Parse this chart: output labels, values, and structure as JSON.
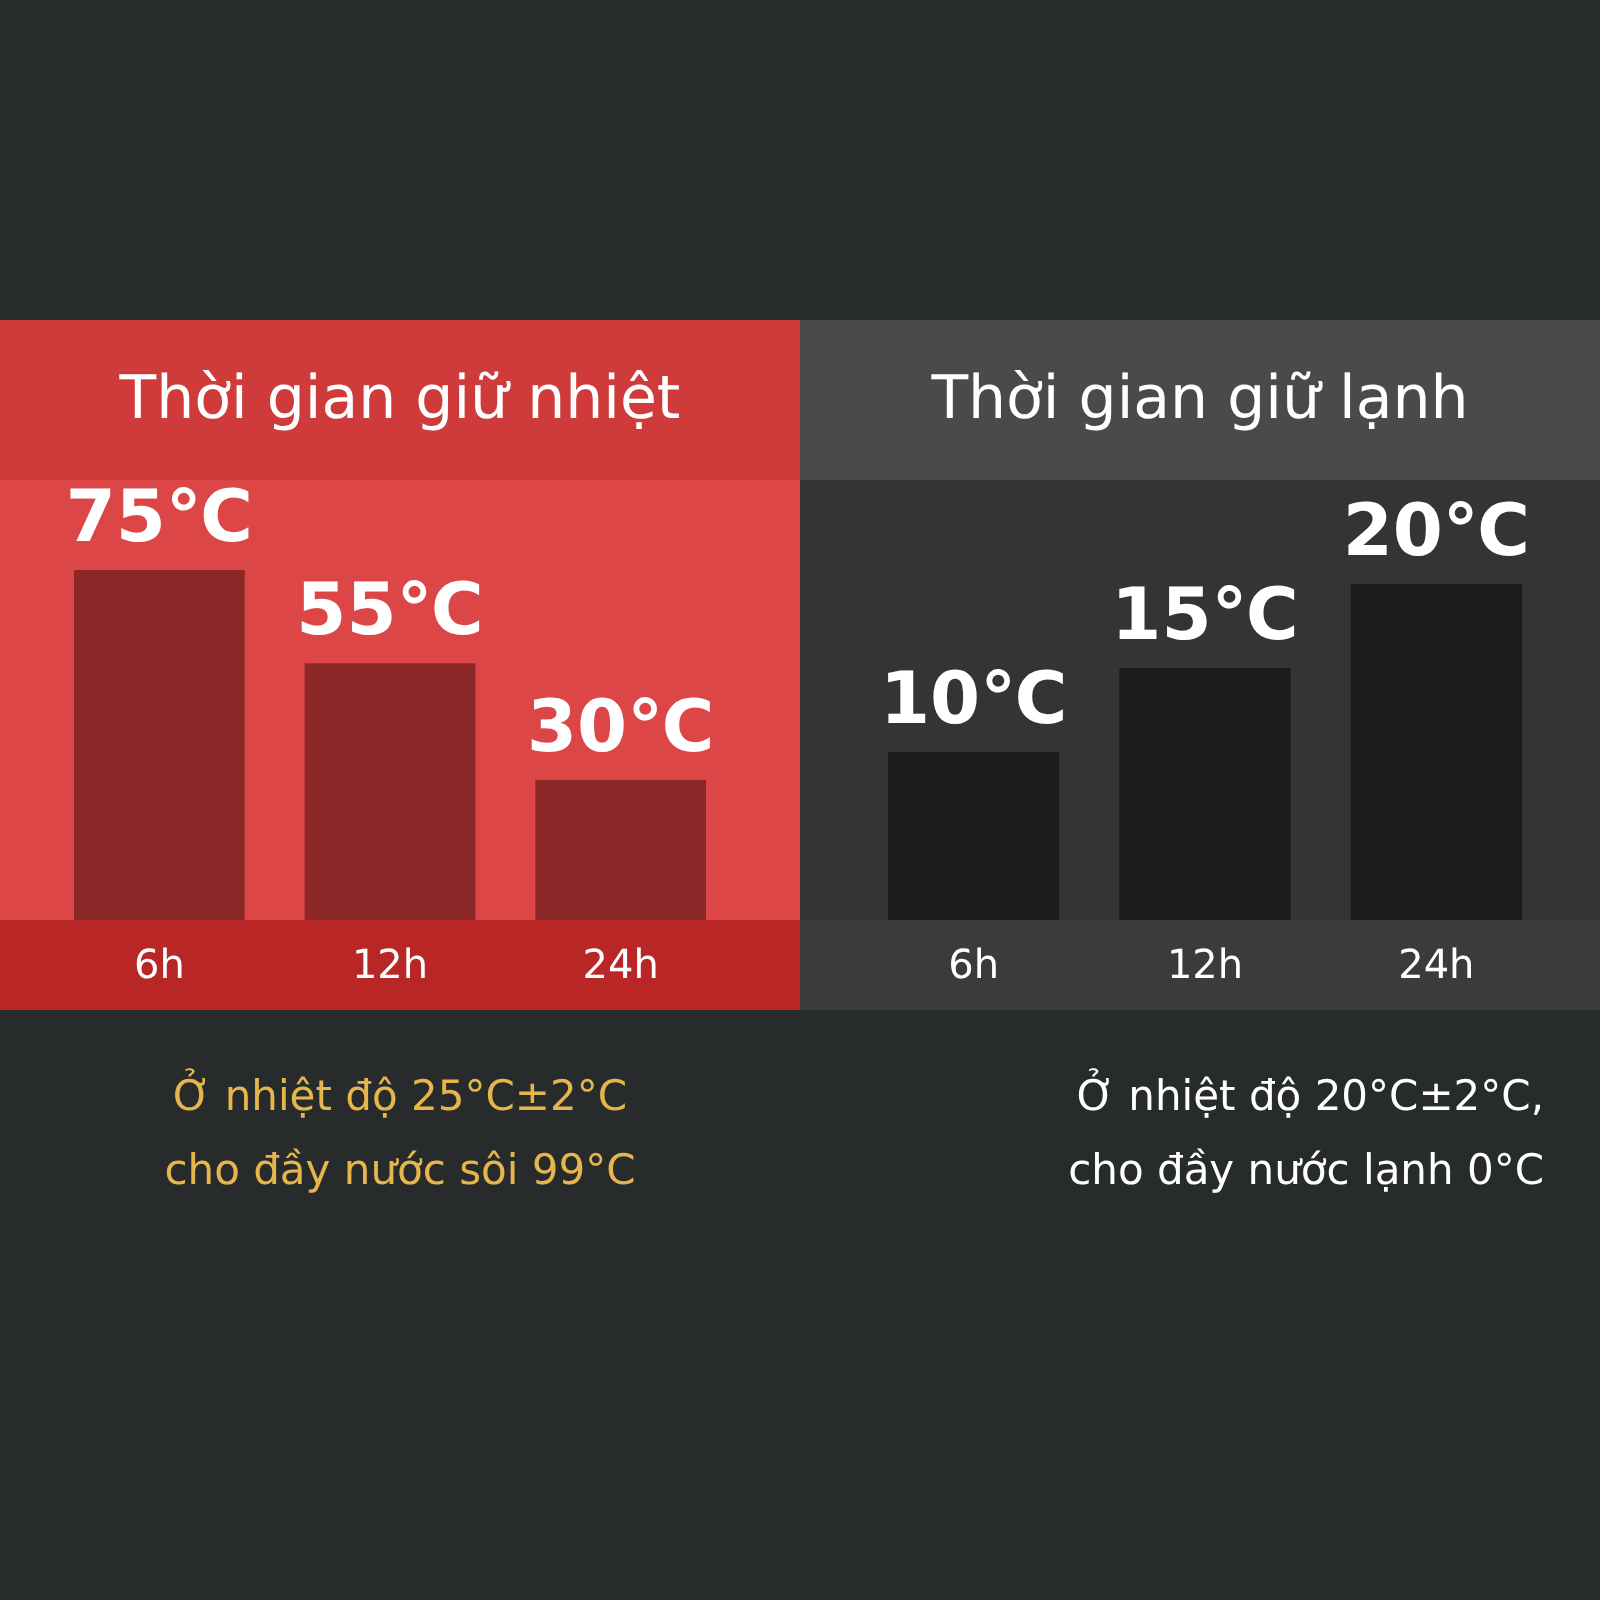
{
  "chart_data": [
    {
      "type": "bar",
      "title": "Thời gian giữ nhiệt",
      "categories": [
        "6h",
        "12h",
        "24h"
      ],
      "values": [
        75,
        55,
        30
      ],
      "value_labels": [
        "75℃",
        "55℃",
        "30℃"
      ],
      "color": "#8b2727",
      "tick_labels": "x",
      "grid": false,
      "legend": false,
      "annotations": [
        "Ở nhiệt độ 25°C±2°C",
        "cho đầy nước sôi 99°C"
      ]
    },
    {
      "type": "bar",
      "title": "Thời gian giữ lạnh",
      "categories": [
        "6h",
        "12h",
        "24h"
      ],
      "values": [
        10,
        15,
        20
      ],
      "value_labels": [
        "10℃",
        "15℃",
        "20℃"
      ],
      "color": "#1c1c1c",
      "tick_labels": "x",
      "grid": false,
      "legend": false,
      "annotations": [
        "Ở nhiệt độ 20°C±2°C,",
        "cho đầy nước lạnh 0°C"
      ]
    }
  ]
}
